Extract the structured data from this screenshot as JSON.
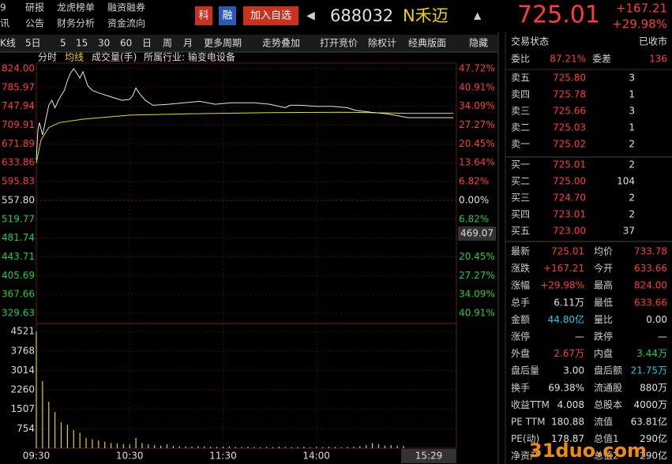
{
  "nav": {
    "rows": [
      [
        "9",
        "研报",
        "龙虎榜单",
        "融资融券"
      ],
      [
        "讯",
        "公告",
        "财务分析",
        "资金流向"
      ]
    ]
  },
  "header": {
    "badges": [
      "科",
      "融"
    ],
    "add": "加入自选",
    "code": "688032",
    "name": "N禾迈",
    "price": "725.01",
    "change": "+167.21",
    "pct": "+29.98%"
  },
  "toolbar": [
    "K线",
    "5日",
    "5",
    "15",
    "30",
    "60",
    "日",
    "周",
    "月",
    "更多周期",
    "走势叠加",
    "打开竞价",
    "除权计",
    "经典版面",
    "隐藏"
  ],
  "tabs": [
    "分时",
    "均线",
    "成交量(手)",
    "所属行业: 输变电设备"
  ],
  "chart_data": {
    "type": "line",
    "xlim": [
      0,
      270
    ],
    "xticks": [
      {
        "value": 0,
        "label": "09:30"
      },
      {
        "value": 60,
        "label": "10:30"
      },
      {
        "value": 120,
        "label": "11:30"
      },
      {
        "value": 180,
        "label": "14:00"
      },
      {
        "value": 269,
        "label": "15:29"
      }
    ],
    "ylim": [
      329.63,
      824
    ],
    "yticks": [
      {
        "value": 824,
        "label": "824.00"
      },
      785.97,
      747.94,
      709.91,
      671.89,
      633.86,
      595.83,
      {
        "value": 557.8,
        "label": "557.80"
      },
      519.77,
      481.74,
      443.71,
      405.69,
      367.66,
      329.63
    ],
    "pct_labels": [
      "47.72%",
      "40.91%",
      "34.09%",
      "27.27%",
      "20.45%",
      "13.64%",
      "6.82%",
      "0.00%",
      "6.82%",
      null,
      "20.45%",
      "27.27%",
      "34.09%",
      "40.91%"
    ],
    "cursor_price": "469.07",
    "price": {
      "color": "#e6e6e6",
      "x": [
        0,
        1,
        2,
        4,
        6,
        8,
        10,
        12,
        15,
        18,
        20,
        22,
        24,
        26,
        28,
        30,
        33,
        36,
        40,
        45,
        50,
        55,
        60,
        62,
        64,
        66,
        70,
        75,
        85,
        95,
        105,
        115,
        125,
        140,
        150,
        160,
        163,
        170,
        180,
        190,
        200,
        205,
        215,
        225,
        239,
        268
      ],
      "values": [
        640,
        700,
        715,
        690,
        720,
        750,
        760,
        745,
        765,
        780,
        800,
        815,
        824,
        815,
        805,
        818,
        790,
        780,
        775,
        770,
        765,
        760,
        762,
        770,
        785,
        775,
        760,
        750,
        752,
        755,
        758,
        752,
        755,
        755,
        752,
        745,
        750,
        750,
        748,
        748,
        745,
        740,
        736,
        733,
        725.01,
        725.01
      ]
    },
    "avg": {
      "color": "#e8e000",
      "x": [
        0,
        3,
        8,
        15,
        30,
        60,
        100,
        150,
        200,
        239,
        268
      ],
      "values": [
        633,
        680,
        705,
        715,
        722,
        730,
        733,
        735,
        736,
        733.78,
        733.78
      ]
    },
    "volume": {
      "color": "#e8d000",
      "ylim": [
        0,
        4800
      ],
      "yticks": [
        4521,
        3768,
        3014,
        2260,
        1507,
        754
      ],
      "x": [
        0,
        4,
        8,
        12,
        16,
        20,
        24,
        28,
        32,
        36,
        40,
        44,
        48,
        52,
        56,
        60,
        64,
        68,
        72,
        76,
        80,
        84,
        88,
        92,
        96,
        100,
        104,
        108,
        112,
        116,
        120,
        124,
        128,
        132,
        136,
        140,
        144,
        148,
        152,
        156,
        160,
        164,
        168,
        172,
        176,
        180,
        184,
        188,
        192,
        196,
        200,
        204,
        208,
        212,
        216,
        220,
        224,
        228,
        232,
        236
      ],
      "values": [
        4521,
        2600,
        1800,
        1400,
        1000,
        900,
        700,
        600,
        400,
        350,
        300,
        250,
        200,
        180,
        160,
        150,
        400,
        200,
        150,
        120,
        100,
        150,
        90,
        80,
        70,
        60,
        80,
        70,
        60,
        50,
        60,
        70,
        50,
        40,
        60,
        50,
        40,
        50,
        40,
        60,
        50,
        40,
        50,
        60,
        40,
        50,
        40,
        60,
        50,
        40,
        50,
        60,
        80,
        120,
        200,
        150,
        100,
        120,
        100,
        90
      ]
    }
  },
  "panel": {
    "status": [
      "交易状态",
      "已收市"
    ],
    "ratio": [
      "委比",
      "87.21%",
      "委差",
      "136"
    ],
    "sells": [
      [
        "卖五",
        "725.80",
        "3"
      ],
      [
        "卖四",
        "725.78",
        "1"
      ],
      [
        "卖三",
        "725.66",
        "3"
      ],
      [
        "卖二",
        "725.03",
        "1"
      ],
      [
        "卖一",
        "725.02",
        "2"
      ]
    ],
    "buys": [
      [
        "买一",
        "725.01",
        "2"
      ],
      [
        "买二",
        "725.00",
        "104"
      ],
      [
        "买三",
        "724.70",
        "2"
      ],
      [
        "买四",
        "723.01",
        "2"
      ],
      [
        "买五",
        "723.00",
        "37"
      ]
    ],
    "stats": [
      [
        "最新",
        "725.01",
        "均价",
        "733.78"
      ],
      [
        "涨跌",
        "+167.21",
        "今开",
        "633.66"
      ],
      [
        "涨幅",
        "+29.98%",
        "最高",
        "824.00"
      ],
      [
        "总手",
        "6.11万",
        "最低",
        "633.66"
      ],
      [
        "金额",
        "44.80亿",
        "量比",
        "0.00"
      ],
      [
        "涨停",
        "—",
        "跌停",
        "—"
      ],
      [
        "外盘",
        "2.67万",
        "内盘",
        "3.44万"
      ],
      [
        "盘后量",
        "3.00",
        "盘后额",
        "21.75万"
      ],
      [
        "换手",
        "69.38%",
        "流通股",
        "880万"
      ],
      [
        "收益TTM",
        "4.008",
        "总股本",
        "4000万"
      ],
      [
        "PE TTM",
        "180.88",
        "流值",
        "63.81亿"
      ],
      [
        "PE(动)",
        "178.87",
        "总值1",
        "290亿"
      ],
      [
        "净资产",
        "",
        "总值2",
        "290亿"
      ]
    ],
    "stat_colors": [
      [
        "#ff3b3b",
        "#ff3b3b"
      ],
      [
        "#ff3b3b",
        "#ff3b3b"
      ],
      [
        "#ff3b3b",
        "#ff3b3b"
      ],
      [
        "#e0e0e0",
        "#ff3b3b"
      ],
      [
        "#22c8e8",
        "#e0e0e0"
      ],
      [
        "#e0e0e0",
        "#e0e0e0"
      ],
      [
        "#ff3b3b",
        "#18d04a"
      ],
      [
        "#e0e0e0",
        "#22c8e8"
      ],
      [
        "#e0e0e0",
        "#e0e0e0"
      ],
      [
        "#e0e0e0",
        "#e0e0e0"
      ],
      [
        "#e0e0e0",
        "#e0e0e0"
      ],
      [
        "#e0e0e0",
        "#e0e0e0"
      ],
      [
        "#e0e0e0",
        "#e0e0e0"
      ]
    ]
  },
  "colors": {
    "up": "#ff3b3b",
    "down": "#18d04a",
    "flat": "#e0e0e0",
    "label": "#cfcfcf"
  },
  "watermark": "31duo.com"
}
